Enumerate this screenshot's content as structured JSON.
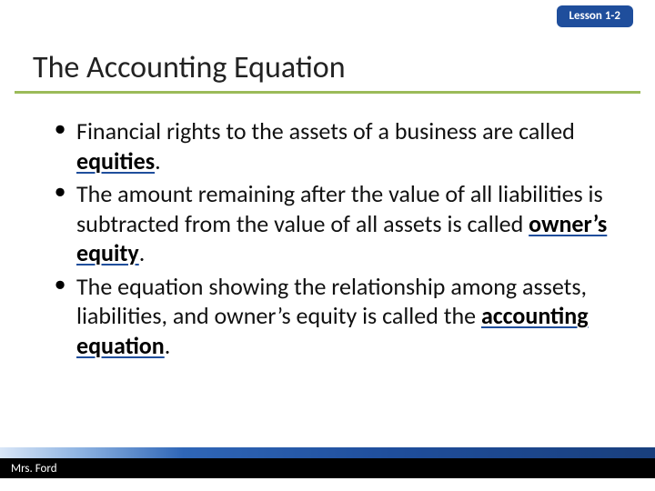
{
  "lesson_tab": "Lesson 1-2",
  "title": "The Accounting Equation",
  "bullets": [
    {
      "pre": "Financial rights to the assets of a business are called ",
      "term": "equities",
      "post": "."
    },
    {
      "pre": "The amount remaining after the value of all liabilities is subtracted from the value of all assets is called ",
      "term": "owner’s equity",
      "post": "."
    },
    {
      "pre": "The equation showing the relationship among assets, liabilities, and owner’s equity is called the ",
      "term": "accounting equation",
      "post": "."
    }
  ],
  "footer_name": "Mrs. Ford",
  "colors": {
    "accent_green": "#9bbb59",
    "accent_blue": "#1f4e9c",
    "black": "#000000",
    "white": "#ffffff"
  }
}
